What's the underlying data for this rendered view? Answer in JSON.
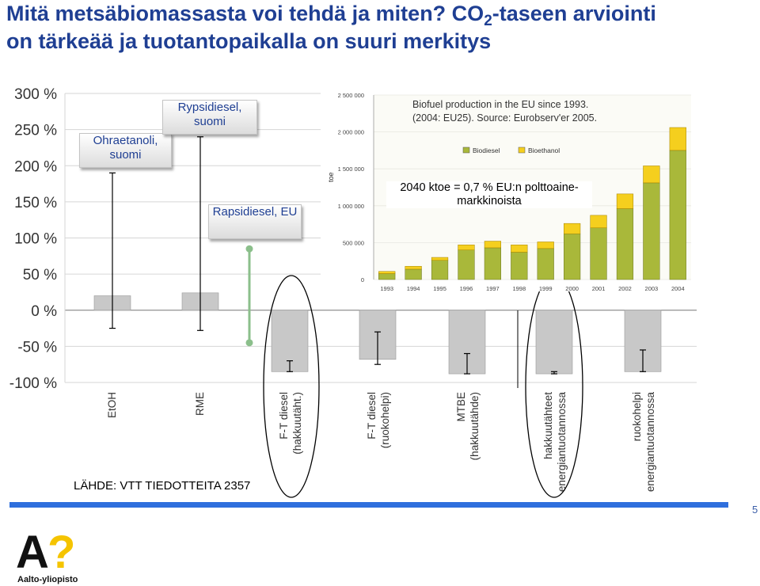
{
  "title": {
    "line1_part1": "Mitä metsäbiomassasta voi tehdä ja miten? CO",
    "line1_sub": "2",
    "line1_part2": "-taseen arviointi",
    "line2": "on tärkeää ja tuotantopaikalla on suuri merkitys"
  },
  "callouts": {
    "ohraetanoli": "Ohraetanoli, suomi",
    "rypsidiesel_suomi": "Rypsidiesel, suomi",
    "rapsidiesel_eu": "Rapsidiesel, EU",
    "ktoe_note": "2040 ktoe = 0,7 % EU:n polttoaine-markkinoista"
  },
  "source": "LÄHDE: VTT TIEDOTTEITA 2357",
  "page_number": "5",
  "logo": {
    "mark_text": "A?",
    "name": "Aalto-yliopisto",
    "colors": {
      "black": "#111111",
      "yellow": "#f5c400"
    }
  },
  "colors": {
    "title": "#1f3f93",
    "bar_gray": "#c8c8c8",
    "biodiesel": "#a9b83a",
    "bioethanol": "#f5cf1e",
    "footer_bar": "#2f6fdd",
    "rapsi_marker": "#8bbf8b"
  },
  "chart_data": [
    {
      "type": "bar",
      "ylim": [
        -100,
        300
      ],
      "y_ticks": [
        "300 %",
        "250 %",
        "200 %",
        "150 %",
        "100 %",
        "50 %",
        "0 %",
        "-50 %",
        "-100 %"
      ],
      "y_tick_values": [
        300,
        250,
        200,
        150,
        100,
        50,
        0,
        -50,
        -100
      ],
      "categories": [
        "EtOH",
        "RME",
        "F-T diesel (hakkuutäht.)",
        "F-T diesel (ruokohelpi)",
        "MTBE (hakkuutähde)",
        "hakkuutähteet energiantuotannossa",
        "ruokohelpi energiantuotannossa"
      ],
      "values": [
        20,
        24,
        -85,
        -68,
        -88,
        -88,
        -85
      ],
      "error_low": [
        -25,
        -28,
        -85,
        -75,
        -88,
        -88,
        -85
      ],
      "error_high": [
        190,
        240,
        -70,
        -30,
        -60,
        -85,
        -55
      ],
      "category_x": [
        142,
        253,
        366,
        477,
        590,
        700,
        812
      ],
      "highlighted": [
        "F-T diesel (hakkuutäht.)",
        "hakkuutähteet energiantuotannossa"
      ],
      "marker_rapsidiesel_eu": {
        "high": 85,
        "low": -45
      }
    },
    {
      "type": "bar",
      "title": "Biofuel production in the EU since 1993.",
      "subtitle": "(2004: EU25). Source: Eurobserv'er 2005.",
      "ylabel": "toe",
      "ylim": [
        0,
        2500000
      ],
      "y_ticks": [
        "2 500 000",
        "2 000 000",
        "1 500 000",
        "1 000 000",
        "500 000",
        "0"
      ],
      "y_tick_values": [
        2500000,
        2000000,
        1500000,
        1000000,
        500000,
        0
      ],
      "categories": [
        "1993",
        "1994",
        "1995",
        "1996",
        "1997",
        "1998",
        "1999",
        "2000",
        "2001",
        "2002",
        "2003",
        "2004"
      ],
      "series": [
        {
          "name": "Biodiesel",
          "color": "#a9b83a",
          "values": [
            80000,
            140000,
            260000,
            400000,
            430000,
            370000,
            420000,
            620000,
            700000,
            960000,
            1310000,
            1750000
          ]
        },
        {
          "name": "Bioethanol",
          "color": "#f5cf1e",
          "values": [
            30000,
            40000,
            40000,
            70000,
            90000,
            100000,
            90000,
            140000,
            170000,
            200000,
            230000,
            310000
          ]
        }
      ],
      "legend": "top"
    }
  ]
}
